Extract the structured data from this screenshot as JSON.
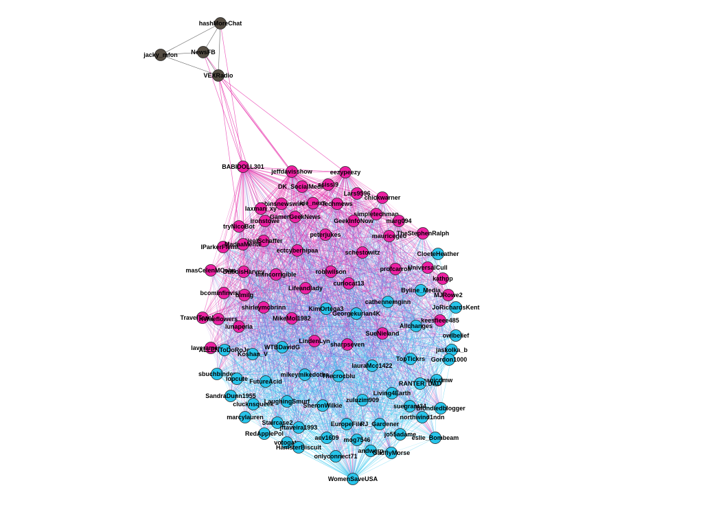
{
  "colors": {
    "magenta": "#ec1fa2",
    "cyan": "#27c4ea",
    "dark": "#554d43",
    "edge_magenta": "#e52aa8",
    "edge_cyan": "#2cc6ee",
    "edge_dark": "#333333",
    "node_stroke": "#222222"
  },
  "graph": {
    "nodes": [
      {
        "id": "hashMoreChat",
        "label": "hashMoreChat",
        "group": "dark"
      },
      {
        "id": "jacky_mfon",
        "label": "jacky_mfon",
        "group": "dark"
      },
      {
        "id": "NewsFB",
        "label": "NewsFB",
        "group": "dark"
      },
      {
        "id": "VEXRadio",
        "label": "VEXRadio",
        "group": "dark"
      },
      {
        "id": "BABIDOLL301",
        "label": "BABIDOLL301",
        "group": "magenta"
      },
      {
        "id": "jeffdavisshow",
        "label": "jeffdavisshow",
        "group": "magenta"
      },
      {
        "id": "eezypeezy",
        "label": "eezypeezy",
        "group": "magenta"
      },
      {
        "id": "DK_SocialMedia",
        "label": "DK_SocialMedia",
        "group": "magenta"
      },
      {
        "id": "ssissi9",
        "label": "ssissi9",
        "group": "magenta"
      },
      {
        "id": "Lars9596",
        "label": "Lars9596",
        "group": "magenta"
      },
      {
        "id": "chickwarner",
        "label": "chickwarner",
        "group": "magenta"
      },
      {
        "id": "robinsnewswire",
        "label": "robinsnewswire",
        "group": "magenta"
      },
      {
        "id": "kie_nexs",
        "label": "kie_nexs",
        "group": "magenta"
      },
      {
        "id": "Techmews",
        "label": "Techmews",
        "group": "magenta"
      },
      {
        "id": "laxman_xy",
        "label": "laxman_xy",
        "group": "magenta"
      },
      {
        "id": "simpletechman",
        "label": "simpletechman",
        "group": "magenta"
      },
      {
        "id": "GamerGeekNews",
        "label": "GamerGeekNews",
        "group": "magenta"
      },
      {
        "id": "GeekInfoNow",
        "label": "GeekInfoNow",
        "group": "magenta"
      },
      {
        "id": "margo94",
        "label": "marg094",
        "group": "magenta"
      },
      {
        "id": "ironstowe",
        "label": "ironstowe",
        "group": "magenta"
      },
      {
        "id": "tryNicoBot",
        "label": "tryNicoBot",
        "group": "magenta"
      },
      {
        "id": "TheStephenRalph",
        "label": "TheStephenRalph",
        "group": "magenta"
      },
      {
        "id": "mauricegeo",
        "label": "mauricegeo",
        "group": "magenta"
      },
      {
        "id": "peterjukes",
        "label": "peterjukes",
        "group": "magenta"
      },
      {
        "id": "NealSchaffer",
        "label": "NealSchaffer",
        "group": "magenta"
      },
      {
        "id": "IParkerFleming",
        "label": "IParkerFleming",
        "group": "magenta"
      },
      {
        "id": "MadaaMente",
        "label": "MadaaMente",
        "group": "magenta"
      },
      {
        "id": "ectcyberhipaa",
        "label": "ectcyberhipaa",
        "group": "magenta"
      },
      {
        "id": "schestowitz",
        "label": "schestowitz",
        "group": "magenta"
      },
      {
        "id": "mascolenCohn",
        "label": "masCelenMCohn",
        "group": "magenta"
      },
      {
        "id": "DuboisHarvey",
        "label": "DuboisHarvey",
        "group": "magenta"
      },
      {
        "id": "imincorrigible",
        "label": "imincorrigible",
        "group": "magenta"
      },
      {
        "id": "roblwilson",
        "label": "roblwilson",
        "group": "magenta"
      },
      {
        "id": "profcarroll",
        "label": "profcarroll",
        "group": "magenta"
      },
      {
        "id": "UniversalCull",
        "label": "UniversalCull",
        "group": "magenta"
      },
      {
        "id": "kathpp",
        "label": "kathpp",
        "group": "magenta"
      },
      {
        "id": "bcominfinvision",
        "label": "bcominfinvision",
        "group": "magenta"
      },
      {
        "id": "blmilg",
        "label": "blmilg",
        "group": "magenta"
      },
      {
        "id": "Lifeandlady",
        "label": "Lifeandlady",
        "group": "magenta"
      },
      {
        "id": "curlocat13",
        "label": "curlocat13",
        "group": "magenta"
      },
      {
        "id": "MJRowe2",
        "label": "MJRowe2",
        "group": "magenta"
      },
      {
        "id": "shirleymcbrinn",
        "label": "shirleymcbrinn",
        "group": "magenta"
      },
      {
        "id": "TravelTeachers",
        "label": "TravelTeachers",
        "group": "magenta"
      },
      {
        "id": "KWaeflowers",
        "label": "KWaeflowers",
        "group": "magenta"
      },
      {
        "id": "MikeMol1982",
        "label": "MikeMol1982",
        "group": "magenta"
      },
      {
        "id": "lunaperla",
        "label": "lunaperla",
        "group": "magenta"
      },
      {
        "id": "keesfieee485",
        "label": "keesfieee485",
        "group": "magenta"
      },
      {
        "id": "SueNieland",
        "label": "SueNieland",
        "group": "magenta"
      },
      {
        "id": "LindenLyn",
        "label": "LindenLyn",
        "group": "magenta"
      },
      {
        "id": "sharpseven",
        "label": "sharpseven",
        "group": "magenta"
      },
      {
        "id": "laveramemo2",
        "label": "laveramemo2",
        "group": "magenta"
      },
      {
        "id": "CloeteHeather",
        "label": "CloeteHeather",
        "group": "cyan"
      },
      {
        "id": "Byline_Media",
        "label": "Byline_Media",
        "group": "cyan"
      },
      {
        "id": "JoRichardsKent",
        "label": "JoRichardsKent",
        "group": "cyan"
      },
      {
        "id": "cathennemginn",
        "label": "cathennemginn",
        "group": "cyan"
      },
      {
        "id": "KimOrtega3",
        "label": "KimOrtega3",
        "group": "cyan"
      },
      {
        "id": "Georgekurian4K",
        "label": "Georgekurian4K",
        "group": "cyan"
      },
      {
        "id": "Allchanges",
        "label": "Allchanges",
        "group": "cyan"
      },
      {
        "id": "owlbelief",
        "label": "owlbelief",
        "group": "cyan"
      },
      {
        "id": "ALLEN2ToDoRoJo",
        "label": "ALLENToDoRoJo",
        "group": "cyan"
      },
      {
        "id": "WTBDavidG",
        "label": "WTBDavidG",
        "group": "cyan"
      },
      {
        "id": "Koshan_V",
        "label": "Koshan_V",
        "group": "cyan"
      },
      {
        "id": "jaskolka_b",
        "label": "jaskolka_b",
        "group": "cyan"
      },
      {
        "id": "TopTickrs",
        "label": "TopTickrs",
        "group": "cyan"
      },
      {
        "id": "Gordon1000",
        "label": "Gordon1000",
        "group": "cyan"
      },
      {
        "id": "lauraMcc1422",
        "label": "lauraMcc1422",
        "group": "cyan"
      },
      {
        "id": "sbuchbinder",
        "label": "sbuchbinder",
        "group": "cyan"
      },
      {
        "id": "lopcute",
        "label": "lopcute",
        "group": "cyan"
      },
      {
        "id": "mikeymikedotha",
        "label": "mikeymikedotha",
        "group": "cyan"
      },
      {
        "id": "Thecrocblu",
        "label": "Thecrocblu",
        "group": "cyan"
      },
      {
        "id": "FutureAcid",
        "label": "FutureAcid",
        "group": "cyan"
      },
      {
        "id": "magicdmw",
        "label": "magicdmw",
        "group": "cyan"
      },
      {
        "id": "RANTER_DAD",
        "label": "RANTER_DAD",
        "group": "cyan"
      },
      {
        "id": "SandraDunn1955",
        "label": "SandraDunn1955",
        "group": "cyan"
      },
      {
        "id": "LaughingSmurf",
        "label": "LaughingSmurf",
        "group": "cyan"
      },
      {
        "id": "zuluzim909",
        "label": "zuluzim909",
        "group": "cyan"
      },
      {
        "id": "Living4Earth",
        "label": "Living4Earth",
        "group": "cyan"
      },
      {
        "id": "clucknsqueek",
        "label": "clucknsqueek",
        "group": "cyan"
      },
      {
        "id": "SheronWilkie",
        "label": "SheronWilkie",
        "group": "cyan"
      },
      {
        "id": "suegrant34",
        "label": "suegrant34",
        "group": "cyan"
      },
      {
        "id": "Blondiedblogger",
        "label": "Blondiedblogger",
        "group": "cyan"
      },
      {
        "id": "marcylauren",
        "label": "marcylauren",
        "group": "cyan"
      },
      {
        "id": "northwind1ndn",
        "label": "northwind1ndn",
        "group": "cyan"
      },
      {
        "id": "Staircase2",
        "label": "Staircase2",
        "group": "cyan"
      },
      {
        "id": "EuropeFile",
        "label": "EuropeFile",
        "group": "cyan"
      },
      {
        "id": "RJ_Gardener",
        "label": "RJ_Gardener",
        "group": "cyan"
      },
      {
        "id": "RedApplePol",
        "label": "RedApplePol",
        "group": "cyan"
      },
      {
        "id": "jftaveira1993",
        "label": "jftaveira1993",
        "group": "cyan"
      },
      {
        "id": "jo55adame",
        "label": "jo55adame",
        "group": "cyan"
      },
      {
        "id": "eslie_Bombeam",
        "label": "eslie_Bombeam",
        "group": "cyan"
      },
      {
        "id": "aev1609",
        "label": "aev1609",
        "group": "cyan"
      },
      {
        "id": "mog7546",
        "label": "mog7546",
        "group": "cyan"
      },
      {
        "id": "votogate",
        "label": "votogate",
        "group": "cyan"
      },
      {
        "id": "HamsterBiscuit",
        "label": "HamsterBiscuit",
        "group": "cyan"
      },
      {
        "id": "andwerp",
        "label": "andwerp",
        "group": "cyan"
      },
      {
        "id": "GadflyMorse",
        "label": "GadflyMorse",
        "group": "cyan"
      },
      {
        "id": "onlyconnect71",
        "label": "onlyconnect71",
        "group": "cyan"
      },
      {
        "id": "WomenSaveUSA",
        "label": "WomenSaveUSA",
        "group": "cyan"
      }
    ],
    "edges": [
      [
        "hashMoreChat",
        "jacky_mfon"
      ],
      [
        "hashMoreChat",
        "NewsFB"
      ],
      [
        "hashMoreChat",
        "VEXRadio"
      ],
      [
        "jacky_mfon",
        "NewsFB"
      ],
      [
        "jacky_mfon",
        "VEXRadio"
      ],
      [
        "NewsFB",
        "VEXRadio"
      ],
      [
        "VEXRadio",
        "BABIDOLL301"
      ],
      [
        "VEXRadio",
        "jeffdavisshow"
      ],
      [
        "VEXRadio",
        "eezypeezy"
      ],
      [
        "VEXRadio",
        "DK_SocialMedia"
      ],
      [
        "VEXRadio",
        "tryNicoBot"
      ],
      [
        "VEXRadio",
        "laxman_xy"
      ],
      [
        "NewsFB",
        "BABIDOLL301"
      ],
      [
        "NewsFB",
        "jeffdavisshow"
      ],
      [
        "hashMoreChat",
        "BABIDOLL301"
      ]
    ]
  }
}
